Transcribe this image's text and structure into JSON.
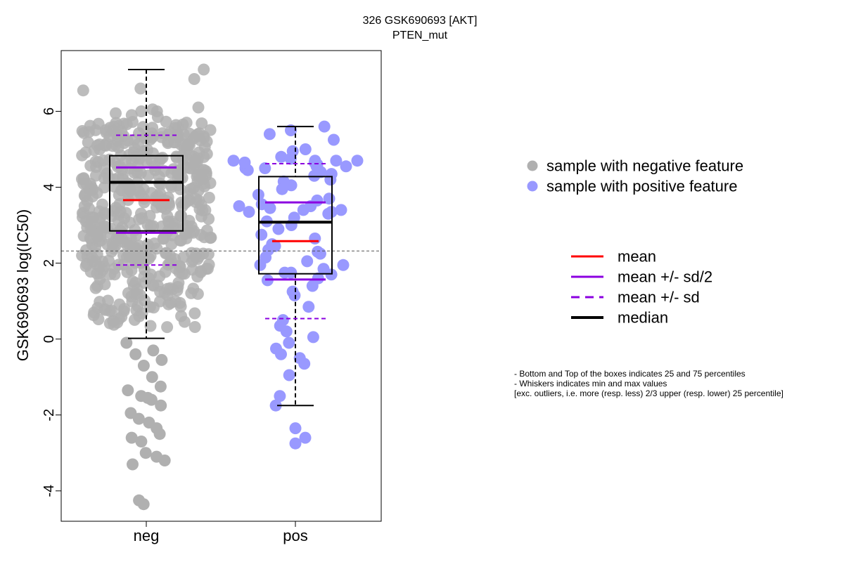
{
  "chart_data": {
    "type": "scatter",
    "title": [
      "326 GSK690693 [AKT]",
      "PTEN_mut"
    ],
    "ylabel": "GSK690693 log(IC50)",
    "categories": [
      "neg",
      "pos"
    ],
    "ylim": [
      -4.8,
      7.6
    ],
    "yticks": [
      -4,
      -2,
      0,
      2,
      4,
      6
    ],
    "reference_line": 2.32,
    "groups": [
      {
        "name": "neg",
        "color": "#b0b0b0",
        "stats": {
          "min": 0.02,
          "q1": 2.85,
          "median": 4.13,
          "q3": 4.83,
          "max": 7.1,
          "mean": 3.66,
          "mean_plus_half_sd": 4.52,
          "mean_minus_half_sd": 2.8,
          "mean_plus_sd": 5.37,
          "mean_minus_sd": 1.95
        },
        "outliers": [
          -0.1,
          -0.4,
          -0.7,
          -1.0,
          -1.25,
          -1.35,
          -1.5,
          -1.55,
          -1.6,
          -1.75,
          -1.95,
          -2.1,
          -2.2,
          -2.35,
          -2.5,
          -2.6,
          -2.7,
          -3.0,
          -3.1,
          -3.2,
          -3.3,
          -4.25,
          -4.35,
          -0.3,
          -0.55
        ]
      },
      {
        "name": "pos",
        "color": "#9999ff",
        "stats": {
          "min": -1.75,
          "q1": 1.72,
          "median": 3.08,
          "q3": 4.28,
          "max": 5.6,
          "mean": 2.58,
          "mean_plus_half_sd": 3.6,
          "mean_minus_half_sd": 1.57,
          "mean_plus_sd": 4.62,
          "mean_minus_sd": 0.54
        },
        "outliers": [
          -2.35,
          -2.6,
          -2.75
        ],
        "points": [
          5.6,
          5.5,
          5.4,
          5.25,
          5.0,
          4.95,
          4.8,
          4.75,
          4.7,
          4.7,
          4.65,
          4.6,
          4.55,
          4.5,
          4.5,
          4.45,
          4.4,
          4.35,
          4.3,
          4.2,
          4.15,
          4.05,
          3.95,
          3.8,
          3.7,
          3.65,
          3.55,
          3.5,
          3.45,
          3.4,
          3.35,
          3.3,
          3.2,
          3.1,
          3.0,
          2.9,
          2.75,
          2.65,
          2.5,
          2.45,
          2.35,
          2.3,
          2.25,
          2.15,
          2.05,
          1.95,
          1.85,
          1.75,
          1.75,
          1.7,
          1.6,
          1.55,
          1.4,
          1.25,
          1.15,
          0.85,
          0.5,
          0.35,
          0.2,
          0.05,
          -0.1,
          -0.25,
          -0.4,
          -0.5,
          -0.65,
          -0.95,
          -1.5,
          -1.75
        ]
      }
    ],
    "legend": {
      "points": [
        {
          "label": "sample with negative feature",
          "color": "#b0b0b0"
        },
        {
          "label": "sample with positive feature",
          "color": "#9999ff"
        }
      ],
      "lines": [
        {
          "label": "mean",
          "color": "#ff0000",
          "dash": false,
          "width": 3
        },
        {
          "label": "mean +/- sd/2",
          "color": "#8b00e0",
          "dash": false,
          "width": 3
        },
        {
          "label": "mean +/- sd",
          "color": "#8b00e0",
          "dash": true,
          "width": 3
        },
        {
          "label": "median",
          "color": "#000000",
          "dash": false,
          "width": 4
        }
      ]
    },
    "notes": [
      "- Bottom and Top of the boxes indicates 25 and 75 percentiles",
      "- Whiskers indicates min and max values",
      "[exc. outliers, i.e. more (resp. less) 2/3 upper (resp. lower) 25 percentile]"
    ]
  }
}
